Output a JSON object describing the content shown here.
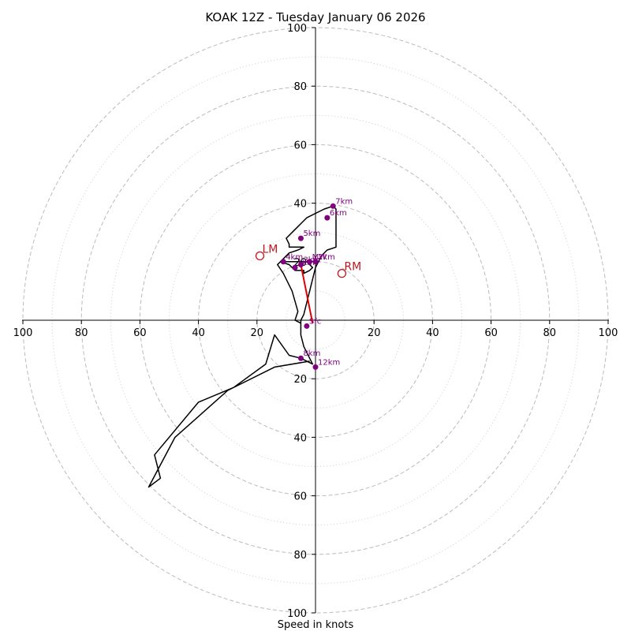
{
  "chart_data": {
    "type": "hodograph",
    "title": "KOAK 12Z - Tuesday January 06 2026",
    "xlabel": "Speed in knots",
    "range": [
      -100,
      100
    ],
    "rings_dashed": [
      20,
      40,
      60,
      80,
      100
    ],
    "rings_dotted": [
      10,
      30,
      50,
      70,
      90
    ],
    "tick_labels": {
      "x": [
        "100",
        "80",
        "60",
        "40",
        "20",
        "20",
        "40",
        "60",
        "80",
        "100"
      ],
      "y": [
        "100",
        "80",
        "60",
        "40",
        "20",
        "20",
        "40",
        "60",
        "80",
        "100"
      ]
    },
    "tick_values": [
      -100,
      -80,
      -60,
      -40,
      -20,
      20,
      40,
      60,
      80,
      100
    ],
    "colors": {
      "trace": "#000000",
      "markers": "#800080",
      "shear": "#e00000",
      "motion": "#c0181e",
      "grid": "#bbbbbb"
    },
    "trace": [
      [
        -5,
        -1
      ],
      [
        -7,
        0
      ],
      [
        -6,
        3
      ],
      [
        -8,
        10
      ],
      [
        -11,
        16
      ],
      [
        -13,
        19
      ],
      [
        -12,
        20
      ],
      [
        -8,
        20
      ],
      [
        -6,
        20
      ],
      [
        -3,
        20
      ],
      [
        -1,
        18
      ],
      [
        -2,
        17
      ],
      [
        -4,
        16
      ],
      [
        -4,
        17
      ],
      [
        -7,
        17
      ],
      [
        -9,
        19
      ],
      [
        -12,
        20
      ],
      [
        -9,
        23
      ],
      [
        -6,
        24
      ],
      [
        -4,
        25
      ],
      [
        -9,
        25
      ],
      [
        -9,
        26
      ],
      [
        -10,
        28
      ],
      [
        -8,
        30
      ],
      [
        -6,
        32
      ],
      [
        -3,
        35
      ],
      [
        3,
        38
      ],
      [
        6,
        39
      ],
      [
        7,
        38
      ],
      [
        7,
        36
      ],
      [
        7,
        25
      ],
      [
        4,
        24
      ],
      [
        2,
        22
      ],
      [
        1,
        20
      ],
      [
        0,
        18
      ],
      [
        -1,
        14
      ],
      [
        -2,
        10
      ],
      [
        -3,
        6
      ],
      [
        -4,
        2
      ],
      [
        -5,
        0
      ],
      [
        -5,
        -5
      ],
      [
        -4,
        -9
      ],
      [
        -2,
        -13
      ],
      [
        -1,
        -15
      ],
      [
        -5,
        -13
      ],
      [
        -9,
        -12
      ],
      [
        -14,
        -5
      ],
      [
        -17,
        -15
      ],
      [
        -28,
        -23
      ],
      [
        -40,
        -28
      ],
      [
        -55,
        -46
      ],
      [
        -53,
        -54
      ],
      [
        -57,
        -57
      ],
      [
        -48,
        -40
      ],
      [
        -30,
        -24
      ],
      [
        -14,
        -16
      ],
      [
        -2,
        -14
      ]
    ],
    "height_markers": [
      {
        "label": "Sfc",
        "u": -3,
        "v": -2
      },
      {
        "label": "1km",
        "u": -7,
        "v": 18
      },
      {
        "label": "2km",
        "u": 0,
        "v": 20
      },
      {
        "label": "3km",
        "u": -5,
        "v": 19
      },
      {
        "label": "4km",
        "u": -11,
        "v": 20
      },
      {
        "label": "5km",
        "u": -5,
        "v": 28
      },
      {
        "label": "6km",
        "u": 4,
        "v": 35
      },
      {
        "label": "7km",
        "u": 6,
        "v": 39
      },
      {
        "label": "8km",
        "u": -5,
        "v": -13
      },
      {
        "label": "12km",
        "u": 0,
        "v": -16
      },
      {
        "label": "MW",
        "u": -2,
        "v": 20
      }
    ],
    "shear_vector": {
      "from": [
        -1,
        -1
      ],
      "to": [
        -5,
        19
      ]
    },
    "storm_motion": [
      {
        "label": "LM",
        "u": -19,
        "v": 22
      },
      {
        "label": "RM",
        "u": 9,
        "v": 16
      }
    ]
  }
}
